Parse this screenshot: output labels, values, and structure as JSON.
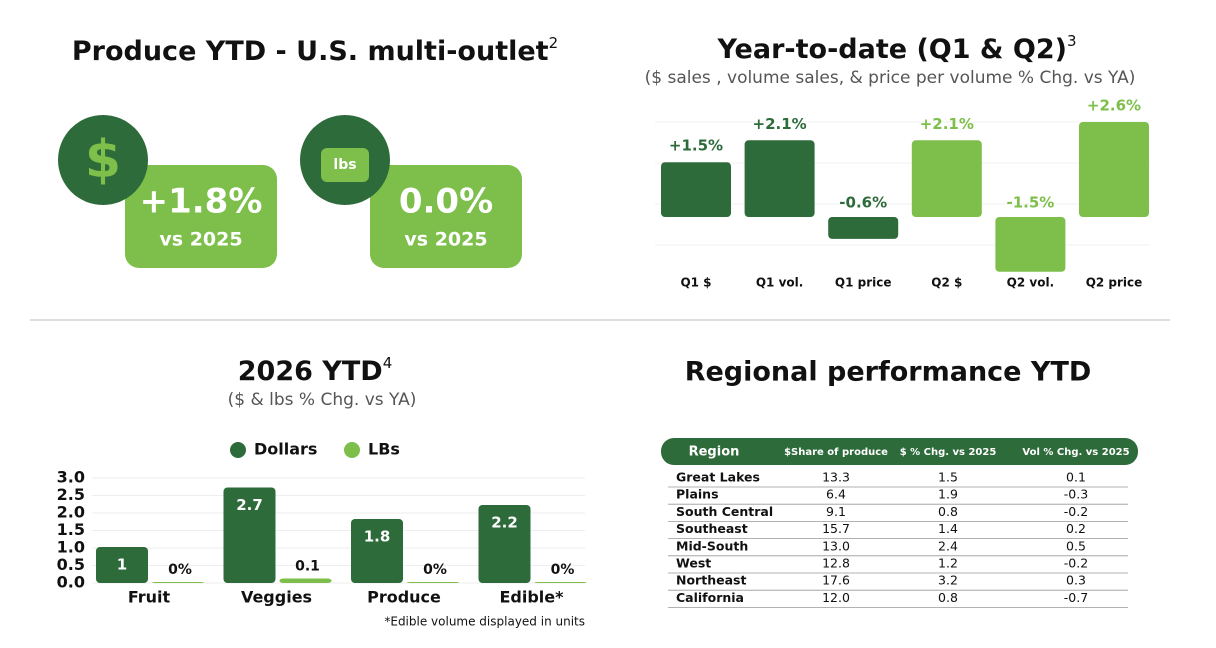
{
  "kpis": [
    {
      "title": "Produce YTD - U.S. multi-outlet",
      "title_superscript": "2"
    },
    {
      "icon": "$",
      "value": "+1.8%",
      "label": "vs 2025"
    },
    {
      "icon": "lbs",
      "value": "0.0%",
      "label": "vs 2025"
    }
  ],
  "chart_data": [
    {
      "type": "bar",
      "title": "Year-to-date (Q1 & Q2)",
      "title_superscript": "3",
      "subtitle": "($ sales , volume sales, & price per volume % Chg. vs YA)",
      "categories": [
        "Q1 $",
        "Q1 vol.",
        "Q1 price",
        "Q2 $",
        "Q2 vol.",
        "Q2 price"
      ],
      "values": [
        1.5,
        2.1,
        -0.6,
        2.1,
        -1.5,
        2.6
      ],
      "value_labels": [
        "+1.5%",
        "+2.1%",
        "-0.6%",
        "+2.1%",
        "-1.5%",
        "+2.6%"
      ],
      "colors": [
        "#2e6b3a",
        "#2e6b3a",
        "#2e6b3a",
        "#7dbf4a",
        "#7dbf4a",
        "#7dbf4a"
      ]
    },
    {
      "type": "grouped-bar",
      "title": "2026 YTD",
      "title_superscript": "4",
      "subtitle": "($ & lbs % Chg. vs YA)",
      "categories": [
        "Fruit",
        "Veggies",
        "Produce",
        "Edible*"
      ],
      "series": [
        {
          "name": "Dollars",
          "color": "#2e6b3a",
          "values": [
            1,
            2.7,
            1.8,
            2.2
          ]
        },
        {
          "name": "LBs",
          "color": "#7dbf4a",
          "values": [
            0,
            0.1,
            0,
            0
          ],
          "value_labels": [
            "0%",
            "0.1",
            "0%",
            "0%"
          ]
        }
      ],
      "ylim": [
        0,
        3
      ],
      "yticks": [
        {
          "value": 0,
          "label": "0.0"
        },
        0.5,
        {
          "value": 1,
          "label": "1.0"
        },
        1.5,
        {
          "value": 2,
          "label": "2.0"
        },
        2.5,
        {
          "value": 3,
          "label": "3.0"
        }
      ],
      "legend": "top",
      "footnote": "*Edible volume displayed in units"
    }
  ],
  "table": {
    "title": "Regional performance YTD",
    "header": [
      "Region",
      "$Share of produce",
      "$ % Chg. vs 2025",
      "Vol % Chg. vs 2025"
    ],
    "rows": [
      [
        "Great Lakes",
        "13.3",
        "1.5",
        "0.1"
      ],
      [
        "Plains",
        "6.4",
        "1.9",
        "-0.3"
      ],
      [
        "South Central",
        "9.1",
        "0.8",
        "-0.2"
      ],
      [
        "Southeast",
        "15.7",
        "1.4",
        "0.2"
      ],
      [
        "Mid-South",
        "13.0",
        "2.4",
        "0.5"
      ],
      [
        "West",
        "12.8",
        "1.2",
        "-0.2"
      ],
      [
        "Northeast",
        "17.6",
        "3.2",
        "0.3"
      ],
      [
        "California",
        "12.0",
        "0.8",
        "-0.7"
      ]
    ]
  }
}
